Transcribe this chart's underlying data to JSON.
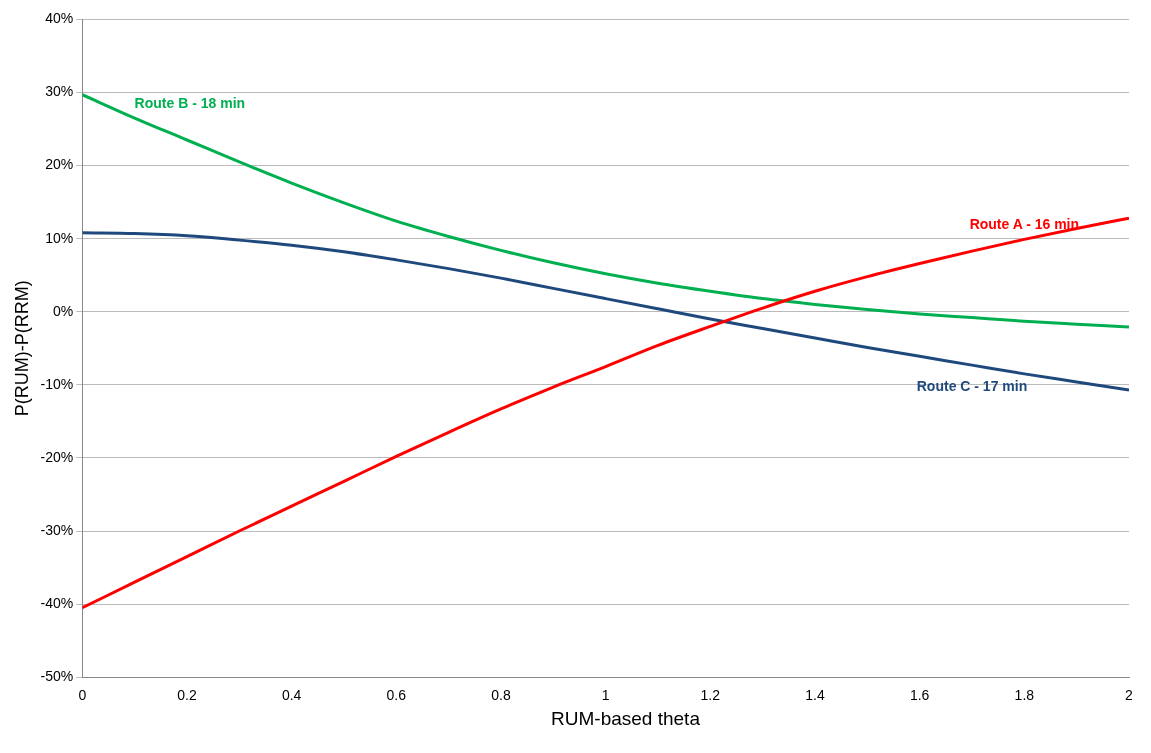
{
  "chart_data": {
    "type": "line",
    "xlabel": "RUM-based theta",
    "ylabel": "P(RUM)-P(RRM)",
    "x": [
      0,
      0.1,
      0.2,
      0.3,
      0.4,
      0.5,
      0.6,
      0.7,
      0.8,
      0.9,
      1,
      1.1,
      1.2,
      1.3,
      1.4,
      1.5,
      1.6,
      1.7,
      1.8,
      1.9,
      2
    ],
    "series": [
      {
        "name": "Route A - 16 min",
        "color": "#ff0000",
        "values": [
          -40.5,
          -37,
          -33.5,
          -30,
          -26.6,
          -23.2,
          -19.8,
          -16.5,
          -13.3,
          -10.3,
          -7.5,
          -4.6,
          -2,
          0.5,
          2.8,
          4.8,
          6.6,
          8.3,
          9.9,
          11.4,
          12.8
        ]
      },
      {
        "name": "Route B - 18 min",
        "color": "#00b050",
        "values": [
          29.7,
          26.5,
          23.5,
          20.5,
          17.6,
          14.9,
          12.4,
          10.3,
          8.4,
          6.7,
          5.2,
          3.9,
          2.8,
          1.8,
          1,
          0.3,
          -0.3,
          -0.8,
          -1.3,
          -1.7,
          -2.1
        ]
      },
      {
        "name": "Route C - 17 min",
        "color": "#1f497d",
        "values": [
          10.8,
          10.7,
          10.4,
          9.8,
          9.1,
          8.2,
          7.1,
          5.9,
          4.6,
          3.2,
          1.8,
          0.4,
          -1,
          -2.3,
          -3.6,
          -4.9,
          -6.1,
          -7.3,
          -8.5,
          -9.6,
          -10.7
        ]
      }
    ],
    "xlim": [
      0,
      2
    ],
    "xticks": [
      0,
      0.2,
      0.4,
      0.6,
      0.8,
      1,
      1.2,
      1.4,
      1.6,
      1.8,
      2
    ],
    "ylim": [
      -50,
      40
    ],
    "yticks": [
      {
        "value": -50,
        "label": "-50%"
      },
      {
        "value": -40,
        "label": "-40%"
      },
      {
        "value": -30,
        "label": "-30%"
      },
      {
        "value": -20,
        "label": "-20%"
      },
      {
        "value": -10,
        "label": "-10%"
      },
      {
        "value": 0,
        "label": "0%"
      },
      {
        "value": 10,
        "label": "10%"
      },
      {
        "value": 20,
        "label": "20%"
      },
      {
        "value": 30,
        "label": "30%"
      },
      {
        "value": 40,
        "label": "40%"
      }
    ],
    "grid": "y",
    "legend": false,
    "marker": "none",
    "line_style": "solid"
  }
}
